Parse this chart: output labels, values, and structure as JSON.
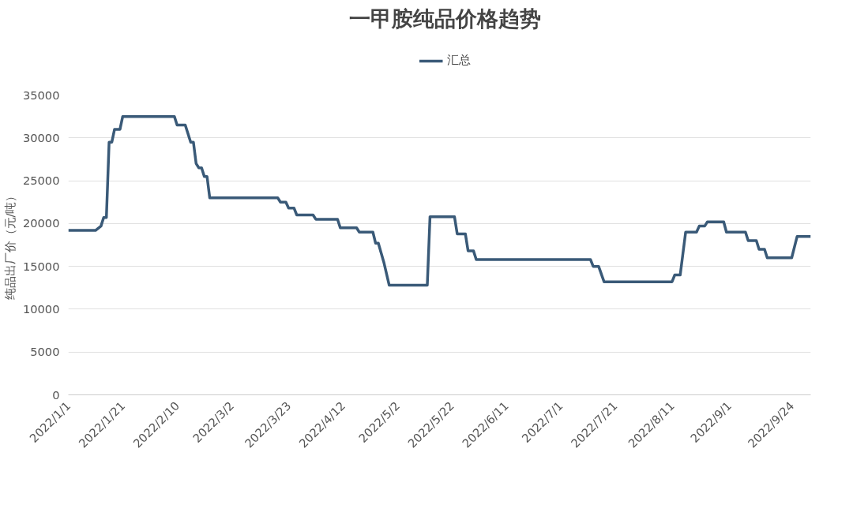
{
  "chart_data": {
    "type": "line",
    "title": "一甲胺纯品价格趋势",
    "ylabel": "纯品出厂价（元/吨）",
    "xlim": [
      "2022-01-01",
      "2022-10-01"
    ],
    "xticks": [
      {
        "value": "2022-01-01",
        "label": "2022/1/1"
      },
      {
        "value": "2022-01-21",
        "label": "2022/1/21"
      },
      {
        "value": "2022-02-10",
        "label": "2022/2/10"
      },
      {
        "value": "2022-03-02",
        "label": "2022/3/2"
      },
      {
        "value": "2022-03-23",
        "label": "2022/3/23"
      },
      {
        "value": "2022-04-12",
        "label": "2022/4/12"
      },
      {
        "value": "2022-05-02",
        "label": "2022/5/2"
      },
      {
        "value": "2022-05-22",
        "label": "2022/5/22"
      },
      {
        "value": "2022-06-11",
        "label": "2022/6/11"
      },
      {
        "value": "2022-07-01",
        "label": "2022/7/1"
      },
      {
        "value": "2022-07-21",
        "label": "2022/7/21"
      },
      {
        "value": "2022-08-11",
        "label": "2022/8/11"
      },
      {
        "value": "2022-09-01",
        "label": "2022/9/1"
      },
      {
        "value": "2022-09-24",
        "label": "2022/9/24"
      }
    ],
    "ylim": [
      0,
      35000
    ],
    "yticks": [
      0,
      5000,
      10000,
      15000,
      20000,
      25000,
      30000,
      35000
    ],
    "grid": "y",
    "legend": "top",
    "marker": "none",
    "line_style": "solid",
    "x": [
      "2022-01-01",
      "2022-01-11",
      "2022-01-13",
      "2022-01-14",
      "2022-01-15",
      "2022-01-16",
      "2022-01-17",
      "2022-01-18",
      "2022-01-20",
      "2022-01-21",
      "2022-02-09",
      "2022-02-10",
      "2022-02-13",
      "2022-02-15",
      "2022-02-16",
      "2022-02-17",
      "2022-02-18",
      "2022-02-19",
      "2022-02-20",
      "2022-02-21",
      "2022-02-22",
      "2022-03-19",
      "2022-03-20",
      "2022-03-22",
      "2022-03-23",
      "2022-03-25",
      "2022-03-26",
      "2022-04-01",
      "2022-04-02",
      "2022-04-10",
      "2022-04-11",
      "2022-04-17",
      "2022-04-18",
      "2022-04-23",
      "2022-04-24",
      "2022-04-25",
      "2022-04-27",
      "2022-04-29",
      "2022-05-13",
      "2022-05-14",
      "2022-05-23",
      "2022-05-24",
      "2022-05-27",
      "2022-05-28",
      "2022-05-30",
      "2022-05-31",
      "2022-07-12",
      "2022-07-13",
      "2022-07-15",
      "2022-07-17",
      "2022-08-11",
      "2022-08-12",
      "2022-08-14",
      "2022-08-15",
      "2022-08-16",
      "2022-08-20",
      "2022-08-21",
      "2022-08-23",
      "2022-08-24",
      "2022-08-30",
      "2022-08-31",
      "2022-09-07",
      "2022-09-08",
      "2022-09-11",
      "2022-09-12",
      "2022-09-14",
      "2022-09-15",
      "2022-09-24",
      "2022-09-26",
      "2022-10-01"
    ],
    "series": [
      {
        "name": "汇总",
        "color": "#3a5a78",
        "values": [
          19200,
          19200,
          19700,
          20700,
          20700,
          29500,
          29500,
          31000,
          31000,
          32500,
          32500,
          31500,
          31500,
          29500,
          29500,
          27000,
          26500,
          26500,
          25500,
          25500,
          23000,
          23000,
          22500,
          22500,
          21800,
          21800,
          21000,
          21000,
          20500,
          20500,
          19500,
          19500,
          19000,
          19000,
          17700,
          17700,
          15500,
          12800,
          12800,
          20800,
          20800,
          18800,
          18800,
          16800,
          16800,
          15800,
          15800,
          15000,
          15000,
          13200,
          13200,
          14000,
          14000,
          16500,
          19000,
          19000,
          19700,
          19700,
          20200,
          20200,
          19000,
          19000,
          18000,
          18000,
          17000,
          17000,
          16000,
          16000,
          18500,
          18500
        ]
      }
    ]
  }
}
